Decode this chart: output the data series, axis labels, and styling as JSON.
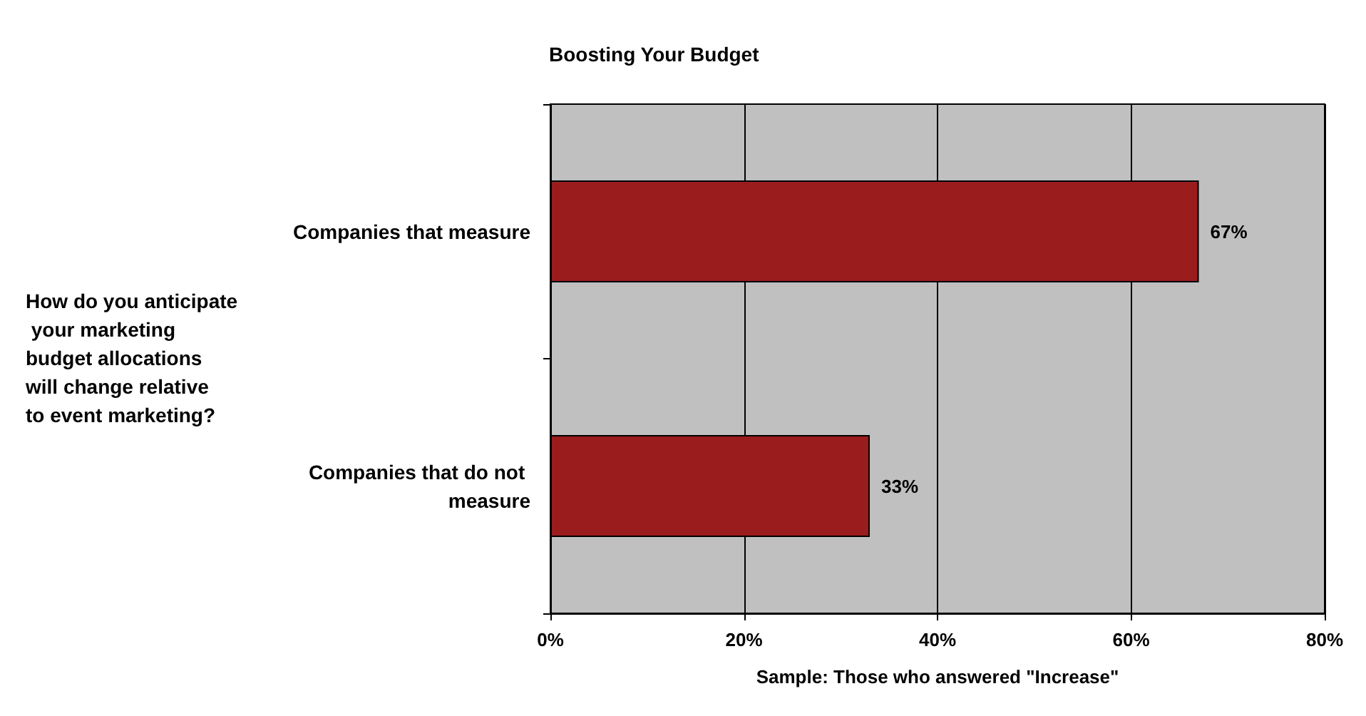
{
  "chart_data": {
    "type": "bar",
    "orientation": "horizontal",
    "title": "Boosting Your Budget",
    "ylabel": "How do you anticipate your marketing budget allocations will change relative to event marketing?",
    "xlabel": "Sample: Those who answered \"Increase\"",
    "categories": [
      "Companies that measure",
      "Companies that do not measure"
    ],
    "values": [
      67,
      33
    ],
    "value_labels": [
      "67%",
      "33%"
    ],
    "color": "#9b1c1c",
    "xlim": [
      0,
      80
    ],
    "xticks": [
      {
        "value": 0,
        "label": "0%"
      },
      {
        "value": 20,
        "label": "20%"
      },
      {
        "value": 40,
        "label": "40%"
      },
      {
        "value": 60,
        "label": "60%"
      },
      {
        "value": 80,
        "label": "80%"
      }
    ],
    "grid": "x"
  }
}
